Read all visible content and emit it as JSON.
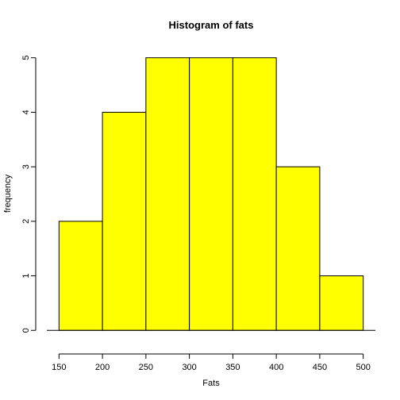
{
  "chart_data": {
    "type": "bar",
    "title": "Histogram of fats",
    "xlabel": "Fats",
    "ylabel": "frequency",
    "bins": [
      {
        "start": 150,
        "end": 200,
        "count": 2
      },
      {
        "start": 200,
        "end": 250,
        "count": 4
      },
      {
        "start": 250,
        "end": 300,
        "count": 5
      },
      {
        "start": 300,
        "end": 350,
        "count": 5
      },
      {
        "start": 350,
        "end": 400,
        "count": 5
      },
      {
        "start": 400,
        "end": 450,
        "count": 3
      },
      {
        "start": 450,
        "end": 500,
        "count": 1
      }
    ],
    "xlim": [
      150,
      500
    ],
    "ylim": [
      0,
      5
    ],
    "x_ticks": [
      150,
      200,
      250,
      300,
      350,
      400,
      450,
      500
    ],
    "y_ticks": [
      0,
      1,
      2,
      3,
      4,
      5
    ],
    "bar_color": "#FFFF00",
    "bar_border_color": "#000000",
    "grid": false,
    "legend": "none"
  }
}
